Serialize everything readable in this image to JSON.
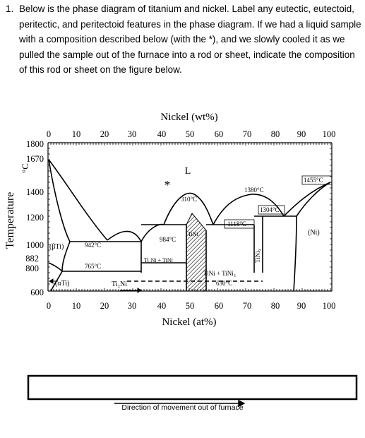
{
  "question": {
    "number": "1.",
    "text": "Below is the phase diagram of titanium and nickel. Label any eutectic, eutectoid, peritectic, and peritectoid features in the phase diagram. If we had a liquid sample with a composition described below (with the *), and we slowly cooled it as we pulled the sample out of the furnace into a rod or sheet, indicate the composition of this rod or sheet on the figure below."
  },
  "diagram": {
    "top_axis_title": "Nickel (wt%)",
    "top_ticks": [
      "0",
      "10",
      "20",
      "30",
      "40",
      "50",
      "60",
      "70",
      "80",
      "90",
      "100"
    ],
    "bottom_axis_title": "Nickel (at%)",
    "bottom_ticks": [
      "0",
      "10",
      "20",
      "30",
      "40",
      "50",
      "60",
      "70",
      "80",
      "90",
      "100"
    ],
    "y_axis_title": "Temperature",
    "y_unit": "°C",
    "y_ticks": [
      "1800",
      "1670",
      "1400",
      "1200",
      "1000",
      "882",
      "800",
      "600"
    ],
    "phase_labels": {
      "liquid": "L",
      "beta_ti": "(βTi)",
      "alpha_ti": "(αTi)",
      "ti2ni": "Ti₂Ni",
      "ti2ni_tini": "Ti₂Ni + TiNi",
      "tini_region": "TiNi",
      "tini3": "TiNi₃",
      "tini_tini3": "TiNi + TiNi₃",
      "ni": "(Ni)"
    },
    "temperature_labels": {
      "t942": "942°C",
      "t765": "765°C",
      "t984": "984°C",
      "t310": "310°C",
      "t1380": "1380°C",
      "t1118": "1118°C",
      "t1304": "1304°C",
      "t1455": "1455°C",
      "t630": "630°C"
    },
    "star": "*"
  },
  "answer_box": {
    "value": ""
  },
  "caption": "Direction of movement out of furnace"
}
